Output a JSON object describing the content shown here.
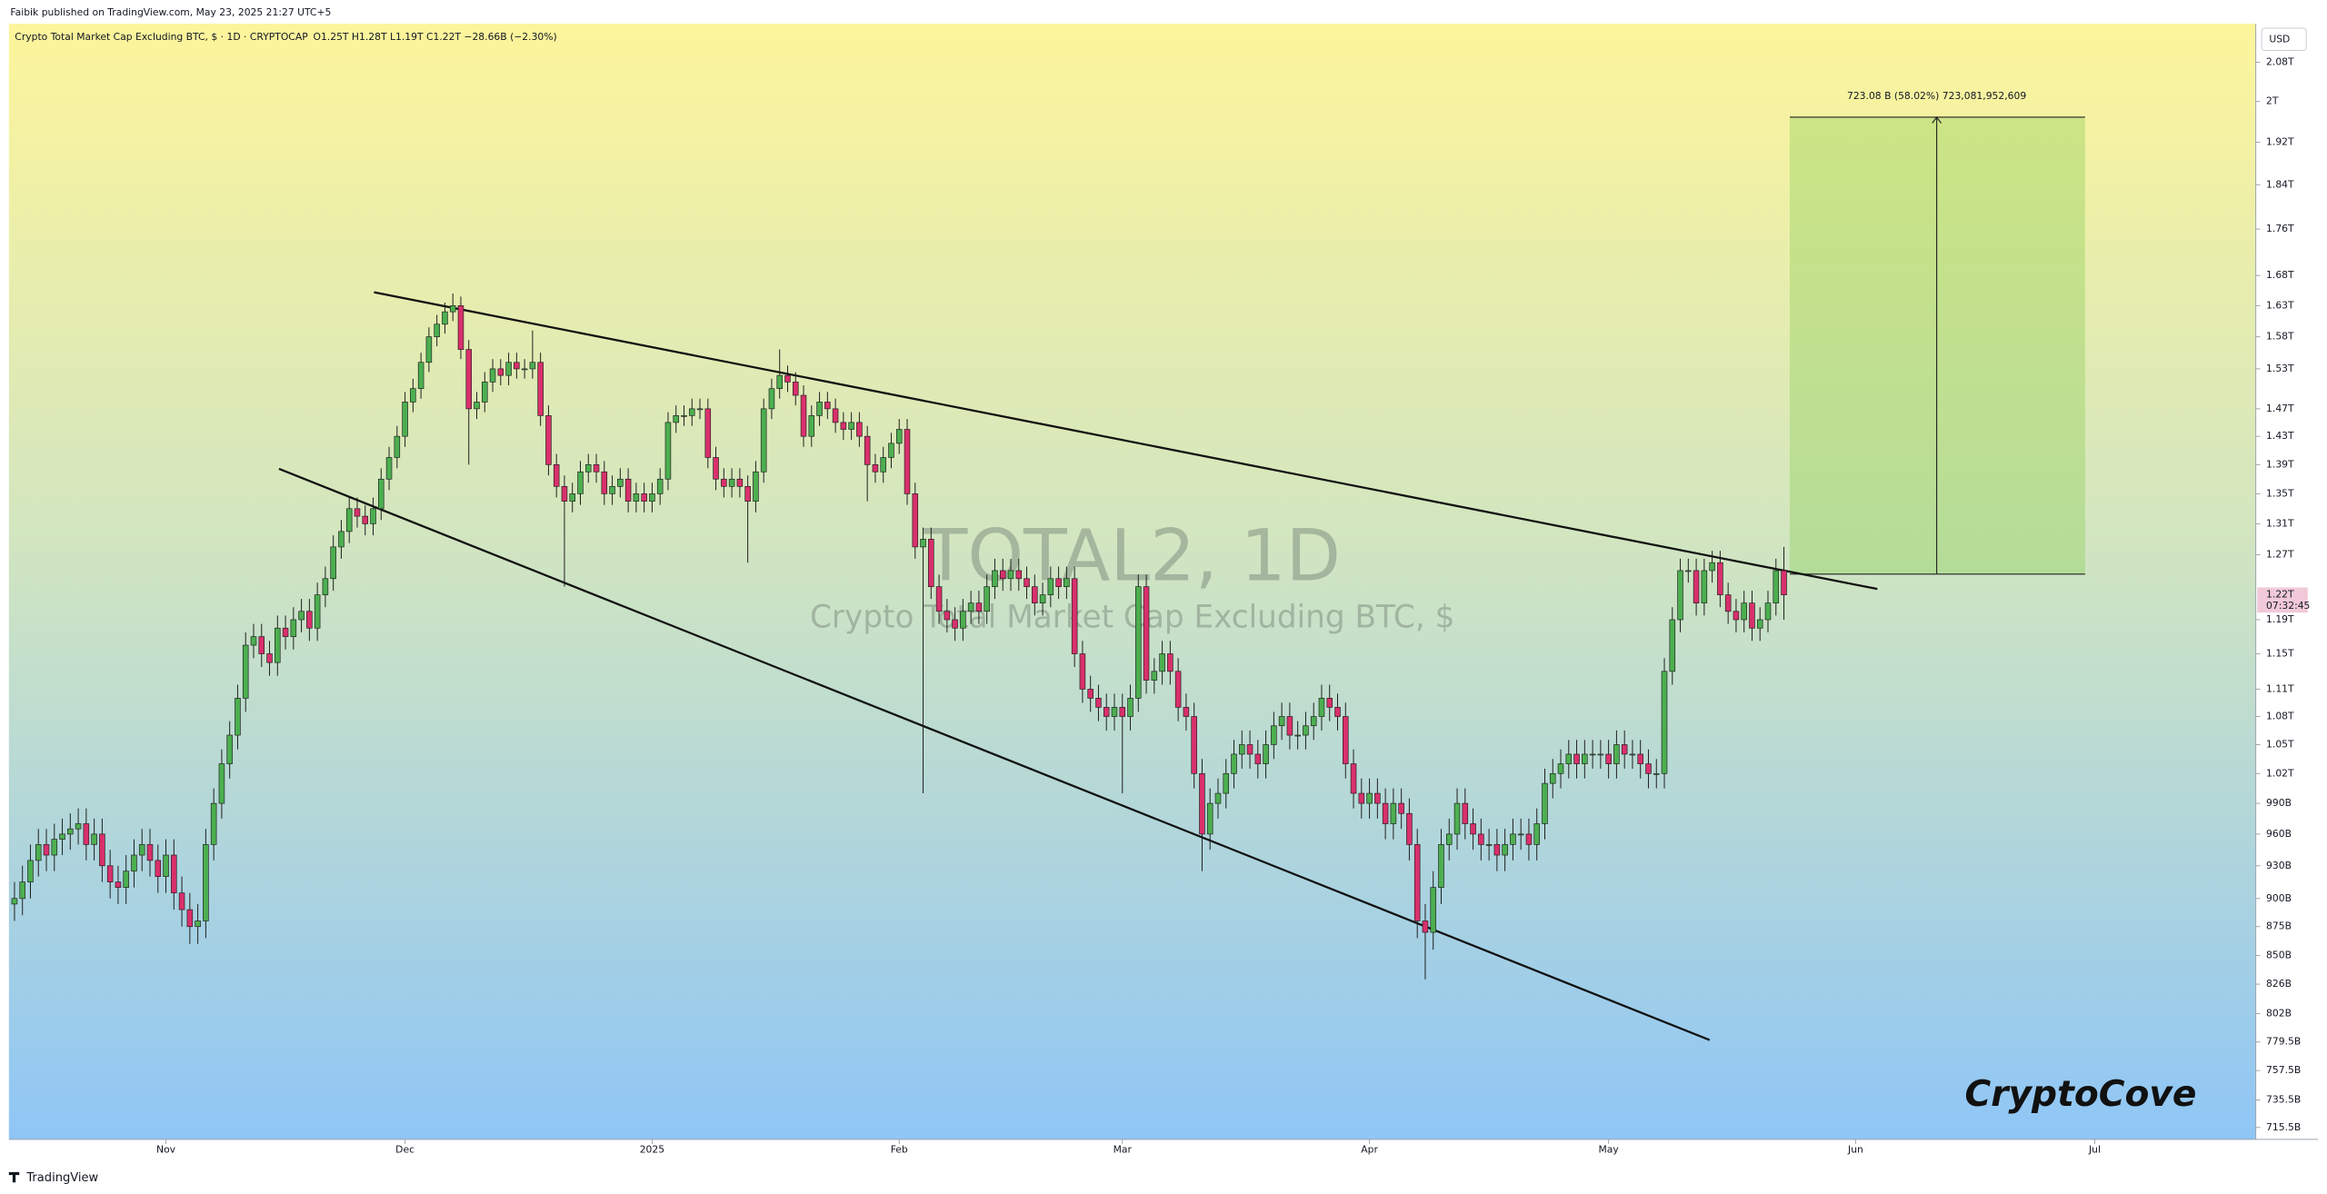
{
  "published": "Faibik published on TradingView.com, May 23, 2025 21:27 UTC+5",
  "brand": "TradingView",
  "chart_data": {
    "type": "candlestick",
    "title": "Crypto Total Market Cap Excluding BTC, $ · 1D · CRYPTOCAP",
    "subtitle": "O1.25T  H1.28T  L1.19T  C1.22T  −28.66B (−2.30%)",
    "watermark": "TOTAL2, 1D",
    "watermark_subtitle": "Crypto Total Market Cap Excluding BTC, $",
    "currency": "USD",
    "measure_label": "723.08 B (58.02%) 723,081,952,609",
    "signature": "CryptoCove",
    "log_scale": true,
    "grid": false,
    "up_color": "#4caf50",
    "down_color": "#d9306c",
    "last_price": {
      "value": 1220,
      "label": "1.22T",
      "countdown": "07:32:45"
    },
    "xlim": [
      -19.7,
      262.2
    ],
    "xticks": [
      {
        "value": 0,
        "label": "Nov"
      },
      {
        "value": 30,
        "label": "Dec"
      },
      {
        "value": 61,
        "label": "2025"
      },
      {
        "value": 92,
        "label": "Feb"
      },
      {
        "value": 120,
        "label": "Mar"
      },
      {
        "value": 151,
        "label": "Apr"
      },
      {
        "value": 181,
        "label": "May"
      },
      {
        "value": 212,
        "label": "Jun"
      },
      {
        "value": 242,
        "label": "Jul"
      }
    ],
    "ylim": [
      707,
      2162
    ],
    "yticks": [
      {
        "value": 2080,
        "label": "2.08T"
      },
      {
        "value": 2000,
        "label": "2T"
      },
      {
        "value": 1920,
        "label": "1.92T"
      },
      {
        "value": 1840,
        "label": "1.84T"
      },
      {
        "value": 1760,
        "label": "1.76T"
      },
      {
        "value": 1680,
        "label": "1.68T"
      },
      {
        "value": 1630,
        "label": "1.63T"
      },
      {
        "value": 1580,
        "label": "1.58T"
      },
      {
        "value": 1530,
        "label": "1.53T"
      },
      {
        "value": 1470,
        "label": "1.47T"
      },
      {
        "value": 1430,
        "label": "1.43T"
      },
      {
        "value": 1390,
        "label": "1.39T"
      },
      {
        "value": 1350,
        "label": "1.35T"
      },
      {
        "value": 1310,
        "label": "1.31T"
      },
      {
        "value": 1270,
        "label": "1.27T"
      },
      {
        "value": 1190,
        "label": "1.19T"
      },
      {
        "value": 1150,
        "label": "1.15T"
      },
      {
        "value": 1110,
        "label": "1.11T"
      },
      {
        "value": 1080,
        "label": "1.08T"
      },
      {
        "value": 1050,
        "label": "1.05T"
      },
      {
        "value": 1020,
        "label": "1.02T"
      },
      {
        "value": 990,
        "label": "990B"
      },
      {
        "value": 960,
        "label": "960B"
      },
      {
        "value": 930,
        "label": "930B"
      },
      {
        "value": 900,
        "label": "900B"
      },
      {
        "value": 875,
        "label": "875B"
      },
      {
        "value": 850,
        "label": "850B"
      },
      {
        "value": 826,
        "label": "826B"
      },
      {
        "value": 802,
        "label": "802B"
      },
      {
        "value": 779.5,
        "label": "779.5B"
      },
      {
        "value": 757.5,
        "label": "757.5B"
      },
      {
        "value": 735.5,
        "label": "735.5B"
      },
      {
        "value": 715.5,
        "label": "715.5B"
      }
    ],
    "x": [
      -19,
      -18,
      -17,
      -16,
      -15,
      -14,
      -13,
      -12,
      -11,
      -10,
      -9,
      -8,
      -7,
      -6,
      -5,
      -4,
      -3,
      -2,
      -1,
      0,
      1,
      2,
      3,
      4,
      5,
      6,
      7,
      8,
      9,
      10,
      11,
      12,
      13,
      14,
      15,
      16,
      17,
      18,
      19,
      20,
      21,
      22,
      23,
      24,
      25,
      26,
      27,
      28,
      29,
      30,
      31,
      32,
      33,
      34,
      35,
      36,
      37,
      38,
      39,
      40,
      41,
      42,
      43,
      44,
      45,
      46,
      47,
      48,
      49,
      50,
      51,
      52,
      53,
      54,
      55,
      56,
      57,
      58,
      59,
      60,
      61,
      62,
      63,
      64,
      65,
      66,
      67,
      68,
      69,
      70,
      71,
      72,
      73,
      74,
      75,
      76,
      77,
      78,
      79,
      80,
      81,
      82,
      83,
      84,
      85,
      86,
      87,
      88,
      89,
      90,
      91,
      92,
      93,
      94,
      95,
      96,
      97,
      98,
      99,
      100,
      101,
      102,
      103,
      104,
      105,
      106,
      107,
      108,
      109,
      110,
      111,
      112,
      113,
      114,
      115,
      116,
      117,
      118,
      119,
      120,
      121,
      122,
      123,
      124,
      125,
      126,
      127,
      128,
      129,
      130,
      131,
      132,
      133,
      134,
      135,
      136,
      137,
      138,
      139,
      140,
      141,
      142,
      143,
      144,
      145,
      146,
      147,
      148,
      149,
      150,
      151,
      152,
      153,
      154,
      155,
      156,
      157,
      158,
      159,
      160,
      161,
      162,
      163,
      164,
      165,
      166,
      167,
      168,
      169,
      170,
      171,
      172,
      173,
      174,
      175,
      176,
      177,
      178,
      179,
      180,
      181,
      182,
      183,
      184,
      185,
      186,
      187,
      188,
      189,
      190,
      191,
      192,
      193,
      194,
      195,
      196,
      197,
      198,
      199,
      200,
      201,
      202,
      203
    ],
    "open": [
      895,
      900,
      915,
      935,
      950,
      940,
      955,
      960,
      965,
      970,
      950,
      960,
      930,
      915,
      910,
      925,
      940,
      950,
      935,
      920,
      940,
      905,
      890,
      875,
      880,
      950,
      990,
      1030,
      1060,
      1100,
      1160,
      1170,
      1150,
      1140,
      1180,
      1170,
      1190,
      1200,
      1180,
      1220,
      1240,
      1280,
      1300,
      1330,
      1320,
      1310,
      1330,
      1370,
      1400,
      1430,
      1480,
      1500,
      1540,
      1580,
      1600,
      1620,
      1630,
      1560,
      1470,
      1480,
      1510,
      1530,
      1520,
      1540,
      1530,
      1530,
      1540,
      1460,
      1390,
      1360,
      1340,
      1350,
      1380,
      1390,
      1380,
      1350,
      1360,
      1370,
      1340,
      1350,
      1340,
      1350,
      1370,
      1450,
      1460,
      1460,
      1470,
      1470,
      1400,
      1370,
      1360,
      1370,
      1360,
      1340,
      1380,
      1470,
      1500,
      1520,
      1510,
      1490,
      1430,
      1460,
      1480,
      1470,
      1450,
      1440,
      1450,
      1430,
      1390,
      1380,
      1400,
      1420,
      1440,
      1350,
      1280,
      1290,
      1230,
      1200,
      1190,
      1180,
      1200,
      1210,
      1200,
      1230,
      1250,
      1240,
      1250,
      1240,
      1230,
      1210,
      1220,
      1240,
      1230,
      1240,
      1150,
      1110,
      1100,
      1090,
      1080,
      1090,
      1080,
      1100,
      1230,
      1120,
      1130,
      1150,
      1130,
      1090,
      1080,
      1020,
      960,
      990,
      1000,
      1020,
      1040,
      1050,
      1040,
      1030,
      1050,
      1070,
      1080,
      1060,
      1060,
      1070,
      1080,
      1100,
      1090,
      1080,
      1030,
      1000,
      990,
      1000,
      990,
      970,
      990,
      980,
      950,
      880,
      870,
      910,
      950,
      960,
      990,
      970,
      960,
      950,
      950,
      940,
      950,
      960,
      960,
      950,
      970,
      1010,
      1020,
      1030,
      1040,
      1030,
      1040,
      1040,
      1040,
      1030,
      1050,
      1040,
      1040,
      1030,
      1020,
      1020,
      1130,
      1190,
      1250,
      1250,
      1210,
      1250,
      1260,
      1220,
      1200,
      1190,
      1210,
      1180,
      1190,
      1210,
      1250
    ],
    "high": [
      915,
      930,
      950,
      965,
      965,
      970,
      975,
      980,
      985,
      985,
      975,
      975,
      945,
      930,
      940,
      955,
      965,
      965,
      950,
      955,
      955,
      920,
      905,
      895,
      965,
      1005,
      1045,
      1075,
      1115,
      1175,
      1185,
      1185,
      1165,
      1195,
      1195,
      1205,
      1215,
      1215,
      1235,
      1255,
      1295,
      1315,
      1345,
      1345,
      1335,
      1345,
      1385,
      1415,
      1445,
      1495,
      1515,
      1555,
      1595,
      1615,
      1635,
      1650,
      1645,
      1575,
      1495,
      1525,
      1545,
      1545,
      1555,
      1555,
      1545,
      1590,
      1555,
      1475,
      1405,
      1375,
      1365,
      1395,
      1405,
      1405,
      1395,
      1375,
      1385,
      1385,
      1365,
      1365,
      1365,
      1385,
      1465,
      1475,
      1475,
      1485,
      1485,
      1485,
      1415,
      1385,
      1385,
      1385,
      1375,
      1395,
      1485,
      1515,
      1560,
      1535,
      1525,
      1505,
      1475,
      1495,
      1495,
      1485,
      1465,
      1465,
      1465,
      1445,
      1405,
      1415,
      1435,
      1455,
      1455,
      1365,
      1305,
      1305,
      1245,
      1215,
      1205,
      1215,
      1225,
      1225,
      1245,
      1265,
      1265,
      1265,
      1265,
      1255,
      1245,
      1235,
      1255,
      1255,
      1255,
      1255,
      1165,
      1125,
      1115,
      1105,
      1105,
      1105,
      1115,
      1245,
      1245,
      1145,
      1165,
      1165,
      1145,
      1105,
      1095,
      1035,
      1005,
      1015,
      1035,
      1055,
      1065,
      1065,
      1055,
      1065,
      1085,
      1095,
      1095,
      1075,
      1085,
      1095,
      1115,
      1115,
      1105,
      1095,
      1045,
      1015,
      1015,
      1015,
      1005,
      1005,
      1005,
      995,
      965,
      895,
      925,
      965,
      975,
      1005,
      1005,
      985,
      975,
      965,
      965,
      965,
      975,
      975,
      975,
      985,
      1025,
      1035,
      1045,
      1055,
      1055,
      1055,
      1055,
      1055,
      1055,
      1065,
      1065,
      1055,
      1055,
      1045,
      1035,
      1145,
      1205,
      1265,
      1265,
      1265,
      1265,
      1275,
      1275,
      1235,
      1215,
      1225,
      1225,
      1205,
      1225,
      1265,
      1280
    ],
    "low": [
      880,
      885,
      900,
      920,
      925,
      925,
      940,
      945,
      950,
      935,
      935,
      915,
      900,
      895,
      895,
      910,
      925,
      920,
      905,
      905,
      890,
      875,
      860,
      860,
      865,
      935,
      975,
      1015,
      1045,
      1085,
      1145,
      1135,
      1125,
      1125,
      1155,
      1155,
      1175,
      1165,
      1165,
      1205,
      1225,
      1265,
      1285,
      1305,
      1295,
      1295,
      1315,
      1355,
      1385,
      1415,
      1465,
      1485,
      1525,
      1565,
      1585,
      1605,
      1545,
      1390,
      1455,
      1465,
      1495,
      1505,
      1505,
      1515,
      1515,
      1515,
      1445,
      1375,
      1345,
      1230,
      1325,
      1335,
      1365,
      1365,
      1335,
      1335,
      1345,
      1325,
      1325,
      1325,
      1325,
      1335,
      1355,
      1435,
      1445,
      1445,
      1455,
      1385,
      1355,
      1345,
      1345,
      1345,
      1260,
      1325,
      1365,
      1455,
      1485,
      1495,
      1475,
      1415,
      1415,
      1445,
      1455,
      1435,
      1425,
      1425,
      1415,
      1340,
      1365,
      1365,
      1385,
      1405,
      1335,
      1265,
      1000,
      1215,
      1185,
      1175,
      1165,
      1165,
      1185,
      1185,
      1185,
      1215,
      1225,
      1225,
      1225,
      1215,
      1195,
      1195,
      1205,
      1215,
      1215,
      1135,
      1095,
      1085,
      1075,
      1065,
      1065,
      1000,
      1065,
      1085,
      1105,
      1105,
      1115,
      1115,
      1075,
      1065,
      1005,
      925,
      945,
      975,
      985,
      1005,
      1025,
      1025,
      1015,
      1015,
      1035,
      1055,
      1045,
      1045,
      1045,
      1055,
      1065,
      1075,
      1065,
      1015,
      985,
      975,
      975,
      975,
      955,
      955,
      965,
      935,
      865,
      830,
      855,
      895,
      935,
      945,
      955,
      945,
      935,
      935,
      925,
      925,
      935,
      945,
      935,
      935,
      955,
      995,
      1005,
      1015,
      1015,
      1015,
      1025,
      1025,
      1015,
      1015,
      1025,
      1025,
      1015,
      1005,
      1005,
      1005,
      1115,
      1175,
      1235,
      1195,
      1195,
      1235,
      1205,
      1185,
      1175,
      1175,
      1165,
      1165,
      1175,
      1195,
      1190
    ],
    "close": [
      900,
      915,
      935,
      950,
      940,
      955,
      960,
      965,
      970,
      950,
      960,
      930,
      915,
      910,
      925,
      940,
      950,
      935,
      920,
      940,
      905,
      890,
      875,
      880,
      950,
      990,
      1030,
      1060,
      1100,
      1160,
      1170,
      1150,
      1140,
      1180,
      1170,
      1190,
      1200,
      1180,
      1220,
      1240,
      1280,
      1300,
      1330,
      1320,
      1310,
      1330,
      1370,
      1400,
      1430,
      1480,
      1500,
      1540,
      1580,
      1600,
      1620,
      1630,
      1560,
      1470,
      1480,
      1510,
      1530,
      1520,
      1540,
      1530,
      1530,
      1540,
      1460,
      1390,
      1360,
      1340,
      1350,
      1380,
      1390,
      1380,
      1350,
      1360,
      1370,
      1340,
      1350,
      1340,
      1350,
      1370,
      1450,
      1460,
      1460,
      1470,
      1470,
      1400,
      1370,
      1360,
      1370,
      1360,
      1340,
      1380,
      1470,
      1500,
      1520,
      1510,
      1490,
      1430,
      1460,
      1480,
      1470,
      1450,
      1440,
      1450,
      1430,
      1390,
      1380,
      1400,
      1420,
      1440,
      1350,
      1280,
      1290,
      1230,
      1200,
      1190,
      1180,
      1200,
      1210,
      1200,
      1230,
      1250,
      1240,
      1250,
      1240,
      1230,
      1210,
      1220,
      1240,
      1230,
      1240,
      1150,
      1110,
      1100,
      1090,
      1080,
      1090,
      1080,
      1100,
      1230,
      1120,
      1130,
      1150,
      1130,
      1090,
      1080,
      1020,
      960,
      990,
      1000,
      1020,
      1040,
      1050,
      1040,
      1030,
      1050,
      1070,
      1080,
      1060,
      1060,
      1070,
      1080,
      1100,
      1090,
      1080,
      1030,
      1000,
      990,
      1000,
      990,
      970,
      990,
      980,
      950,
      880,
      870,
      910,
      950,
      960,
      990,
      970,
      960,
      950,
      950,
      940,
      950,
      960,
      960,
      950,
      970,
      1010,
      1020,
      1030,
      1040,
      1030,
      1040,
      1040,
      1040,
      1030,
      1050,
      1040,
      1040,
      1030,
      1020,
      1020,
      1130,
      1190,
      1250,
      1250,
      1210,
      1250,
      1260,
      1220,
      1200,
      1190,
      1210,
      1180,
      1190,
      1210,
      1250,
      1220
    ]
  }
}
